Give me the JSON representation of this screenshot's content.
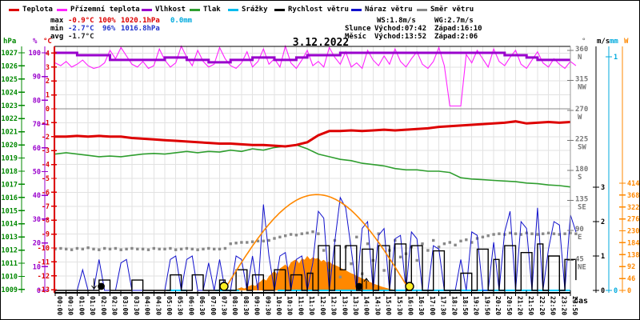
{
  "title": "3.12.2022",
  "legend": {
    "items": [
      {
        "label": "Teplota",
        "color": "#dd0000"
      },
      {
        "label": "Přízemní teplota",
        "color": "#ff22ff"
      },
      {
        "label": "Vlhkost",
        "color": "#9900cc"
      },
      {
        "label": "Tlak",
        "color": "#2f9e2f"
      },
      {
        "label": "Srážky",
        "color": "#00bbee"
      },
      {
        "label": "Rychlost větru",
        "color": "#000000"
      },
      {
        "label": "Náraz větru",
        "color": "#1111cc"
      },
      {
        "label": "Směr větru",
        "color": "#888888"
      }
    ]
  },
  "stats": {
    "max": {
      "label": "max",
      "temp": "-0.9°C",
      "hum": "100%",
      "pres": "1020.1hPa",
      "rain": "0.0mm"
    },
    "min": {
      "label": "min",
      "temp": "-2.7°C",
      "hum": "96%",
      "pres": "1016.8hPa"
    },
    "avg": {
      "label": "avg",
      "temp": "-1.7°C"
    },
    "wind": {
      "ws": "WS:1.8m/s",
      "wg": "WG:2.7m/s"
    },
    "sun": {
      "label": "Slunce",
      "rise": "Východ:07:42",
      "set": "Západ:16:10"
    },
    "moon": {
      "label": "Měsíc",
      "rise": "Východ:13:52",
      "set": "Západ:2:06"
    }
  },
  "chart_data": {
    "type": "line",
    "xlabel": "čas",
    "x_labels": [
      "00:00",
      "00:30",
      "01:00",
      "01:30",
      "02:00",
      "02:30",
      "03:00",
      "03:30",
      "04:00",
      "04:30",
      "05:00",
      "05:30",
      "06:00",
      "06:30",
      "07:00",
      "07:30",
      "08:00",
      "08:30",
      "09:00",
      "09:30",
      "10:00",
      "10:30",
      "11:00",
      "11:30",
      "12:00",
      "12:30",
      "13:00",
      "13:30",
      "14:00",
      "14:30",
      "15:00",
      "15:30",
      "16:00",
      "16:30",
      "17:00",
      "17:30",
      "18:20",
      "18:50",
      "19:20",
      "19:50",
      "20:20",
      "20:50",
      "21:20",
      "21:50",
      "22:20",
      "22:50",
      "23:20",
      "23:50"
    ],
    "axes": {
      "pressure": {
        "unit": "hPa",
        "color": "#008800",
        "min": 1009,
        "max": 1027,
        "tick": 1
      },
      "humidity": {
        "unit": "%",
        "color": "#9900cc",
        "min": 0,
        "max": 100,
        "tick": 10
      },
      "temperature": {
        "unit": "°C",
        "color": "#dd0000",
        "min": -13,
        "max": 4,
        "tick": 1
      },
      "direction": {
        "unit": "°",
        "color": "#777777",
        "ticks": [
          {
            "deg": 360,
            "label": "360",
            "dir": "N"
          },
          {
            "deg": 315,
            "label": "315",
            "dir": "NW"
          },
          {
            "deg": 270,
            "label": "270",
            "dir": "W"
          },
          {
            "deg": 225,
            "label": "225",
            "dir": "SW"
          },
          {
            "deg": 180,
            "label": "180",
            "dir": "S"
          },
          {
            "deg": 135,
            "label": "135",
            "dir": "SE"
          },
          {
            "deg": 90,
            "label": "90",
            "dir": "E"
          },
          {
            "deg": 45,
            "label": "45",
            "dir": "NE"
          }
        ]
      },
      "wind": {
        "unit": "m/s",
        "color": "#000000",
        "ticks": [
          0,
          1,
          2,
          3
        ]
      },
      "rain": {
        "unit": "mm",
        "color": "#00aadd",
        "ticks": [
          0,
          1
        ]
      },
      "radiation": {
        "unit": "W",
        "color": "#ff8800",
        "ticks": [
          0,
          46,
          92,
          138,
          184,
          230,
          276,
          322,
          368,
          414
        ]
      }
    },
    "series": [
      {
        "key": "teplota",
        "name": "Teplota",
        "axis": "temperature",
        "color": "#dd0000",
        "x_start": 0,
        "x_step": 1,
        "values": [
          -2.0,
          -2.0,
          -1.95,
          -2.0,
          -1.95,
          -2.0,
          -2.0,
          -2.1,
          -2.15,
          -2.2,
          -2.25,
          -2.3,
          -2.35,
          -2.4,
          -2.45,
          -2.5,
          -2.5,
          -2.55,
          -2.6,
          -2.6,
          -2.65,
          -2.7,
          -2.6,
          -2.4,
          -1.9,
          -1.6,
          -1.6,
          -1.55,
          -1.6,
          -1.55,
          -1.5,
          -1.55,
          -1.5,
          -1.45,
          -1.4,
          -1.3,
          -1.25,
          -1.2,
          -1.15,
          -1.1,
          -1.05,
          -1.0,
          -0.9,
          -1.05,
          -1.0,
          -0.95,
          -1.0,
          -0.95
        ]
      },
      {
        "key": "prizemni",
        "name": "Přízemní teplota",
        "axis": "temperature",
        "color": "#ff22ff",
        "x_start": 0,
        "x_step": 0.5,
        "values": [
          3.3,
          3.1,
          3.4,
          3.0,
          3.2,
          3.5,
          3.1,
          2.9,
          3.0,
          3.3,
          4.2,
          3.6,
          4.4,
          3.8,
          3.2,
          3.0,
          3.4,
          2.9,
          3.1,
          4.3,
          3.5,
          3.0,
          3.3,
          4.5,
          3.7,
          3.1,
          4.2,
          3.4,
          3.0,
          3.2,
          4.4,
          3.6,
          3.1,
          2.9,
          3.3,
          4.1,
          3.0,
          3.4,
          4.3,
          3.2,
          3.6,
          3.0,
          4.5,
          3.3,
          2.9,
          3.5,
          4.2,
          3.1,
          3.4,
          3.0,
          4.4,
          3.7,
          3.2,
          4.1,
          3.0,
          3.3,
          2.9,
          4.2,
          3.5,
          3.1,
          3.8,
          3.2,
          4.3,
          3.4,
          3.0,
          3.6,
          4.1,
          3.2,
          2.9,
          3.4,
          4.4,
          3.1,
          0.2,
          0.2,
          0.2,
          3.9,
          3.3,
          4.2,
          3.6,
          3.0,
          4.3,
          3.4,
          3.1,
          3.7,
          4.2,
          3.2,
          2.9,
          3.5,
          4.1,
          3.3,
          3.0,
          3.6,
          3.2,
          2.9,
          3.4,
          3.1
        ]
      },
      {
        "key": "vlhkost",
        "name": "Vlhkost",
        "axis": "humidity",
        "color": "#9900cc",
        "x_start": 0,
        "x_step": 1,
        "values": [
          100,
          100,
          99,
          99,
          99,
          97,
          97,
          97,
          97,
          97,
          98,
          98,
          97,
          97,
          96,
          96,
          97,
          97,
          98,
          98,
          97,
          97,
          98,
          99,
          99,
          99,
          100,
          100,
          100,
          100,
          100,
          100,
          100,
          100,
          100,
          100,
          100,
          100,
          100,
          100,
          100,
          99,
          99,
          98,
          97,
          97,
          97,
          97
        ]
      },
      {
        "key": "tlak",
        "name": "Tlak",
        "axis": "pressure",
        "color": "#2f9e2f",
        "x_start": 0,
        "x_step": 1,
        "values": [
          1019.3,
          1019.4,
          1019.3,
          1019.2,
          1019.1,
          1019.15,
          1019.1,
          1019.2,
          1019.3,
          1019.35,
          1019.3,
          1019.4,
          1019.5,
          1019.4,
          1019.5,
          1019.45,
          1019.6,
          1019.5,
          1019.7,
          1019.6,
          1019.8,
          1019.9,
          1020.0,
          1019.7,
          1019.3,
          1019.1,
          1018.9,
          1018.8,
          1018.6,
          1018.5,
          1018.4,
          1018.2,
          1018.1,
          1018.1,
          1018.0,
          1018.0,
          1017.9,
          1017.5,
          1017.4,
          1017.35,
          1017.3,
          1017.25,
          1017.2,
          1017.1,
          1017.05,
          1016.95,
          1016.9,
          1016.8
        ]
      },
      {
        "key": "srazky",
        "name": "Srážky",
        "axis": "rain",
        "color": "#00ccff",
        "value": 0,
        "segments": [
          [
            10.2,
            12.0
          ],
          [
            14.6,
            16.8
          ],
          [
            20.3,
            47.0
          ]
        ]
      },
      {
        "key": "rychlost",
        "name": "Rychlost větru",
        "axis": "wind",
        "color": "#000000",
        "x_start": 0,
        "x_step": 0.5,
        "values": [
          0,
          0,
          0,
          0,
          0,
          0,
          0,
          0,
          0.3,
          0.3,
          0,
          0,
          0,
          0,
          0.3,
          0.3,
          0,
          0,
          0,
          0,
          0,
          0.45,
          0.45,
          0,
          0,
          0.45,
          0.45,
          0,
          0,
          0,
          0.3,
          0,
          0,
          0.6,
          0.6,
          0,
          0.45,
          0.45,
          0,
          0,
          0.6,
          0.6,
          0,
          0.45,
          0.45,
          0,
          0.5,
          0,
          1.3,
          1.3,
          0,
          1.3,
          0.6,
          1.3,
          1.3,
          0,
          1.2,
          1.2,
          0,
          1.3,
          1.3,
          0,
          1.35,
          1.35,
          0,
          1.3,
          1.3,
          0,
          0,
          1.15,
          1.15,
          0,
          0,
          0,
          0.5,
          0.5,
          0,
          1.2,
          1.2,
          0,
          0.9,
          0,
          1.3,
          1.3,
          0,
          1.1,
          1.1,
          0,
          1.35,
          0,
          1.0,
          1.0,
          0,
          0.9,
          0.9,
          0.3
        ]
      },
      {
        "key": "naraz",
        "name": "Náraz větru",
        "axis": "wind",
        "color": "#1111cc",
        "x_start": 0,
        "x_step": 0.5,
        "values": [
          0,
          0,
          0,
          0,
          0,
          0.6,
          0,
          0,
          0.9,
          0,
          0,
          0,
          0.8,
          0.9,
          0,
          0,
          0,
          0,
          0,
          0,
          0,
          0.9,
          1.0,
          0,
          0.9,
          1.0,
          0,
          0,
          0.8,
          0,
          0.9,
          0,
          0,
          1.0,
          0.9,
          0,
          1.0,
          0,
          2.5,
          1.0,
          0,
          1.0,
          1.1,
          0,
          0.9,
          1.0,
          0,
          0.8,
          2.3,
          2.1,
          0,
          1.4,
          2.7,
          2.4,
          1.2,
          0,
          1.8,
          2.0,
          0,
          1.6,
          1.8,
          0,
          1.5,
          1.6,
          0,
          1.7,
          1.5,
          0,
          0,
          1.3,
          1.2,
          0,
          0,
          0,
          0.9,
          0,
          1.7,
          1.6,
          0,
          0,
          1.4,
          0,
          1.7,
          2.3,
          0,
          2.0,
          1.8,
          0,
          2.4,
          0,
          1.2,
          2.0,
          1.9,
          0,
          2.2,
          1.7
        ]
      },
      {
        "key": "smer",
        "name": "Směr větru",
        "axis": "direction",
        "color": "#888888",
        "x_start": 0,
        "x_step": 0.5,
        "values": [
          62,
          63,
          62,
          61,
          63,
          62,
          64,
          62,
          61,
          63,
          62,
          63,
          61,
          62,
          63,
          62,
          62,
          61,
          63,
          62,
          62,
          63,
          61,
          62,
          63,
          62,
          61,
          62,
          63,
          62,
          62,
          63,
          70,
          71,
          72,
          72,
          73,
          74,
          74,
          75,
          78,
          80,
          82,
          84,
          83,
          85,
          86,
          88,
          85,
          60,
          30,
          75,
          20,
          65,
          40,
          80,
          25,
          70,
          45,
          85,
          30,
          60,
          75,
          50,
          55,
          65,
          45,
          70,
          60,
          75,
          65,
          70,
          72,
          68,
          74,
          76,
          72,
          78,
          80,
          82,
          84,
          85,
          84,
          86,
          85,
          84,
          86,
          85,
          84,
          85,
          86,
          85,
          84,
          85,
          86,
          85
        ]
      },
      {
        "key": "sun_theoretical",
        "axis": "radiation",
        "color": "#ff8800",
        "peak_w": 370,
        "start_slot": 15.4,
        "end_slot": 32.33
      },
      {
        "key": "sun_actual",
        "axis": "radiation",
        "color": "#ff8800",
        "x_start": 16.5,
        "x_step": 0.25,
        "values": [
          4,
          8,
          12,
          7,
          14,
          18,
          22,
          17,
          28,
          35,
          45,
          38,
          55,
          65,
          75,
          62,
          85,
          92,
          100,
          88,
          108,
          115,
          120,
          104,
          124,
          118,
          133,
          120,
          128,
          122,
          126,
          112,
          118,
          108,
          112,
          102,
          98,
          94,
          88,
          82,
          78,
          72,
          66,
          62,
          56,
          52,
          46,
          42,
          36,
          32,
          27,
          23,
          19,
          15,
          12,
          9,
          6,
          4,
          2,
          0
        ]
      }
    ],
    "markers": {
      "moonset": {
        "slot": 4.2,
        "time": "2:06",
        "type": "moon",
        "arrow": "down"
      },
      "sunrise": {
        "slot": 15.4,
        "time": "07:42",
        "type": "sun"
      },
      "moonrise": {
        "slot": 27.73,
        "time": "13:52",
        "type": "moon",
        "arrow": "up"
      },
      "sunset": {
        "slot": 32.33,
        "time": "16:10",
        "type": "sun"
      }
    }
  }
}
